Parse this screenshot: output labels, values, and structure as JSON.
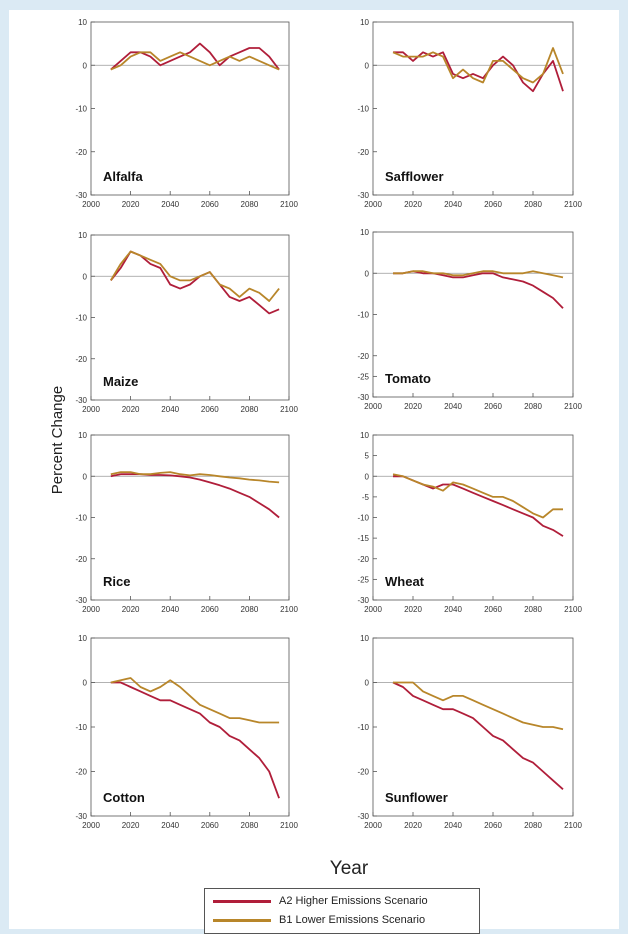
{
  "colors": {
    "a2": "#b01e3a",
    "b1": "#b8862a",
    "background": "#dbeaf4"
  },
  "ylabel": "Percent Change",
  "xlabel": "Year",
  "legend": {
    "a2": "A2 Higher Emissions Scenario",
    "b1": "B1 Lower Emissions Scenario"
  },
  "chart_data": [
    {
      "type": "line",
      "title": "Alfalfa",
      "xlim": [
        2000,
        2100
      ],
      "ylim": [
        -30,
        10
      ],
      "xticks": [
        2000,
        2020,
        2040,
        2060,
        2080,
        2100
      ],
      "yticks": [
        10,
        0,
        -10,
        -20,
        -30
      ],
      "x": [
        2010,
        2015,
        2020,
        2025,
        2030,
        2035,
        2040,
        2045,
        2050,
        2055,
        2060,
        2065,
        2070,
        2075,
        2080,
        2085,
        2090,
        2095
      ],
      "series": [
        {
          "name": "A2 Higher Emissions Scenario",
          "values": [
            -1,
            1,
            3,
            3,
            2,
            0,
            1,
            2,
            3,
            5,
            3,
            0,
            2,
            3,
            4,
            4,
            2,
            -1
          ]
        },
        {
          "name": "B1 Lower Emissions Scenario",
          "values": [
            -1,
            0,
            2,
            3,
            3,
            1,
            2,
            3,
            2,
            1,
            0,
            1,
            2,
            1,
            2,
            1,
            0,
            -1
          ]
        }
      ]
    },
    {
      "type": "line",
      "title": "Safflower",
      "xlim": [
        2000,
        2100
      ],
      "ylim": [
        -30,
        10
      ],
      "xticks": [
        2000,
        2020,
        2040,
        2060,
        2080,
        2100
      ],
      "yticks": [
        10,
        0,
        -10,
        -20,
        -30
      ],
      "x": [
        2010,
        2015,
        2020,
        2025,
        2030,
        2035,
        2040,
        2045,
        2050,
        2055,
        2060,
        2065,
        2070,
        2075,
        2080,
        2085,
        2090,
        2095
      ],
      "series": [
        {
          "name": "A2 Higher Emissions Scenario",
          "values": [
            3,
            3,
            1,
            3,
            2,
            3,
            -2,
            -3,
            -2,
            -3,
            0,
            2,
            0,
            -4,
            -6,
            -2,
            1,
            -6
          ]
        },
        {
          "name": "B1 Lower Emissions Scenario",
          "values": [
            3,
            2,
            2,
            2,
            3,
            2,
            -3,
            -1,
            -3,
            -4,
            1,
            1,
            -1,
            -3,
            -4,
            -2,
            4,
            -2
          ]
        }
      ]
    },
    {
      "type": "line",
      "title": "Maize",
      "xlim": [
        2000,
        2100
      ],
      "ylim": [
        -30,
        10
      ],
      "xticks": [
        2000,
        2020,
        2040,
        2060,
        2080,
        2100
      ],
      "yticks": [
        10,
        0,
        -10,
        -20,
        -30
      ],
      "x": [
        2010,
        2015,
        2020,
        2025,
        2030,
        2035,
        2040,
        2045,
        2050,
        2055,
        2060,
        2065,
        2070,
        2075,
        2080,
        2085,
        2090,
        2095
      ],
      "series": [
        {
          "name": "A2 Higher Emissions Scenario",
          "values": [
            -1,
            2,
            6,
            5,
            3,
            2,
            -2,
            -3,
            -2,
            0,
            1,
            -2,
            -5,
            -6,
            -5,
            -7,
            -9,
            -8
          ]
        },
        {
          "name": "B1 Lower Emissions Scenario",
          "values": [
            -1,
            3,
            6,
            5,
            4,
            3,
            0,
            -1,
            -1,
            0,
            1,
            -2,
            -3,
            -5,
            -3,
            -4,
            -6,
            -3
          ]
        }
      ]
    },
    {
      "type": "line",
      "title": "Tomato",
      "xlim": [
        2000,
        2100
      ],
      "ylim": [
        -30,
        10
      ],
      "xticks": [
        2000,
        2020,
        2040,
        2060,
        2080,
        2100
      ],
      "yticks": [
        10,
        0,
        -10,
        -20,
        -25,
        -30
      ],
      "x": [
        2010,
        2015,
        2020,
        2025,
        2030,
        2035,
        2040,
        2045,
        2050,
        2055,
        2060,
        2065,
        2070,
        2075,
        2080,
        2085,
        2090,
        2095
      ],
      "series": [
        {
          "name": "A2 Higher Emissions Scenario",
          "values": [
            0,
            0,
            0.5,
            0,
            0,
            -0.5,
            -1,
            -1,
            -0.5,
            0,
            0,
            -1,
            -1.5,
            -2,
            -3,
            -4.5,
            -6,
            -8.5
          ]
        },
        {
          "name": "B1 Lower Emissions Scenario",
          "values": [
            0,
            0,
            0.5,
            0.5,
            0,
            0,
            -0.5,
            -0.5,
            0,
            0.5,
            0.5,
            0,
            0,
            0,
            0.5,
            0,
            -0.5,
            -1
          ]
        }
      ]
    },
    {
      "type": "line",
      "title": "Rice",
      "xlim": [
        2000,
        2100
      ],
      "ylim": [
        -30,
        10
      ],
      "xticks": [
        2000,
        2020,
        2040,
        2060,
        2080,
        2100
      ],
      "yticks": [
        10,
        0,
        -10,
        -20,
        -30
      ],
      "x": [
        2010,
        2015,
        2020,
        2025,
        2030,
        2035,
        2040,
        2045,
        2050,
        2055,
        2060,
        2065,
        2070,
        2075,
        2080,
        2085,
        2090,
        2095
      ],
      "series": [
        {
          "name": "A2 Higher Emissions Scenario",
          "values": [
            0,
            0.5,
            0.5,
            0.5,
            0.3,
            0.3,
            0.2,
            0,
            -0.3,
            -0.8,
            -1.5,
            -2.2,
            -3,
            -4,
            -5,
            -6.5,
            -8,
            -10
          ]
        },
        {
          "name": "B1 Lower Emissions Scenario",
          "values": [
            0.5,
            1,
            1,
            0.5,
            0.5,
            0.8,
            1,
            0.5,
            0.2,
            0.5,
            0.3,
            0,
            -0.3,
            -0.5,
            -0.8,
            -1,
            -1.3,
            -1.5
          ]
        }
      ]
    },
    {
      "type": "line",
      "title": "Wheat",
      "xlim": [
        2000,
        2100
      ],
      "ylim": [
        -30,
        10
      ],
      "xticks": [
        2000,
        2020,
        2040,
        2060,
        2080,
        2100
      ],
      "yticks": [
        10,
        5,
        0,
        -5,
        -10,
        -15,
        -20,
        -25,
        -30
      ],
      "x": [
        2010,
        2015,
        2020,
        2025,
        2030,
        2035,
        2040,
        2045,
        2050,
        2055,
        2060,
        2065,
        2070,
        2075,
        2080,
        2085,
        2090,
        2095
      ],
      "series": [
        {
          "name": "A2 Higher Emissions Scenario",
          "values": [
            0,
            0,
            -1,
            -2,
            -3,
            -2,
            -2,
            -3,
            -4,
            -5,
            -6,
            -7,
            -8,
            -9,
            -10,
            -12,
            -13,
            -14.5
          ]
        },
        {
          "name": "B1 Lower Emissions Scenario",
          "values": [
            0.5,
            0,
            -1,
            -2,
            -2.5,
            -3.5,
            -1.5,
            -2,
            -3,
            -4,
            -5,
            -5,
            -6,
            -7.5,
            -9,
            -10,
            -8,
            -8
          ]
        }
      ]
    },
    {
      "type": "line",
      "title": "Cotton",
      "xlim": [
        2000,
        2100
      ],
      "ylim": [
        -30,
        10
      ],
      "xticks": [
        2000,
        2020,
        2040,
        2060,
        2080,
        2100
      ],
      "yticks": [
        10,
        0,
        -10,
        -20,
        -30
      ],
      "x": [
        2010,
        2015,
        2020,
        2025,
        2030,
        2035,
        2040,
        2045,
        2050,
        2055,
        2060,
        2065,
        2070,
        2075,
        2080,
        2085,
        2090,
        2095
      ],
      "series": [
        {
          "name": "A2 Higher Emissions Scenario",
          "values": [
            0,
            0,
            -1,
            -2,
            -3,
            -4,
            -4,
            -5,
            -6,
            -7,
            -9,
            -10,
            -12,
            -13,
            -15,
            -17,
            -20,
            -26
          ]
        },
        {
          "name": "B1 Lower Emissions Scenario",
          "values": [
            0,
            0.5,
            1,
            -1,
            -2,
            -1,
            0.5,
            -1,
            -3,
            -5,
            -6,
            -7,
            -8,
            -8,
            -8.5,
            -9,
            -9,
            -9
          ]
        }
      ]
    },
    {
      "type": "line",
      "title": "Sunflower",
      "xlim": [
        2000,
        2100
      ],
      "ylim": [
        -30,
        10
      ],
      "xticks": [
        2000,
        2020,
        2040,
        2060,
        2080,
        2100
      ],
      "yticks": [
        10,
        0,
        -10,
        -20,
        -30
      ],
      "x": [
        2010,
        2015,
        2020,
        2025,
        2030,
        2035,
        2040,
        2045,
        2050,
        2055,
        2060,
        2065,
        2070,
        2075,
        2080,
        2085,
        2090,
        2095
      ],
      "series": [
        {
          "name": "A2 Higher Emissions Scenario",
          "values": [
            0,
            -1,
            -3,
            -4,
            -5,
            -6,
            -6,
            -7,
            -8,
            -10,
            -12,
            -13,
            -15,
            -17,
            -18,
            -20,
            -22,
            -24
          ]
        },
        {
          "name": "B1 Lower Emissions Scenario",
          "values": [
            0,
            0,
            0,
            -2,
            -3,
            -4,
            -3,
            -3,
            -4,
            -5,
            -6,
            -7,
            -8,
            -9,
            -9.5,
            -10,
            -10,
            -10.5
          ]
        }
      ]
    }
  ]
}
